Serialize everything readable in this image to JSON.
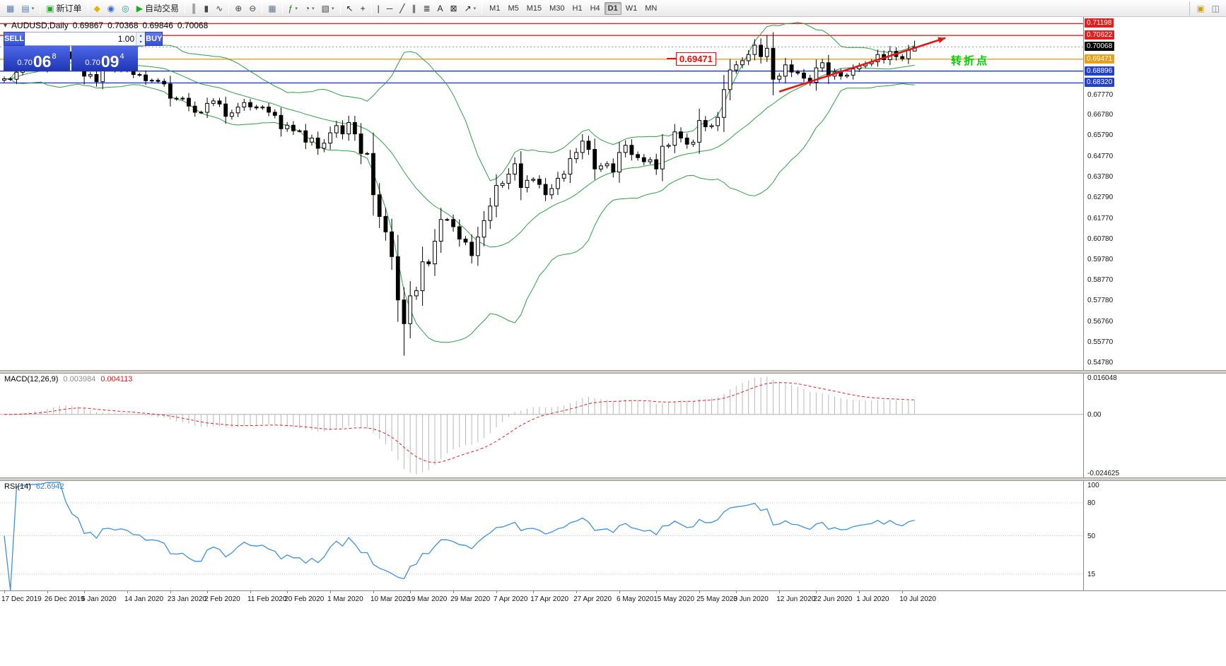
{
  "toolbar": {
    "groups": [
      {
        "items": [
          {
            "name": "new-chart-icon",
            "glyph": "▦",
            "color": "#5a7ab0"
          },
          {
            "name": "chart-profiles-icon",
            "glyph": "▤",
            "color": "#5a7ab0",
            "dd": true
          }
        ]
      },
      {
        "items": [
          {
            "name": "new-order-button",
            "glyph": "▣",
            "color": "#28a428",
            "label": "新订单"
          }
        ]
      },
      {
        "items": [
          {
            "name": "metaeditor-icon",
            "glyph": "◆",
            "color": "#e0b400"
          },
          {
            "name": "market-watch-icon",
            "glyph": "◉",
            "color": "#3a6ad0"
          },
          {
            "name": "navigator-icon",
            "glyph": "◎",
            "color": "#22a098"
          },
          {
            "name": "autotrading-button",
            "glyph": "▶",
            "color": "#14b014",
            "label": "自动交易"
          }
        ]
      },
      {
        "items": [
          {
            "name": "ohlc-bars-icon",
            "glyph": "║",
            "color": "#444444"
          },
          {
            "name": "candlestick-chart-icon",
            "glyph": "▮",
            "color": "#444444"
          },
          {
            "name": "line-chart-icon",
            "glyph": "∿",
            "color": "#444444"
          }
        ]
      },
      {
        "items": [
          {
            "name": "zoom-in-icon",
            "glyph": "⊕",
            "color": "#444444"
          },
          {
            "name": "zoom-out-icon",
            "glyph": "⊖",
            "color": "#444444"
          }
        ]
      },
      {
        "items": [
          {
            "name": "tile-windows-icon",
            "glyph": "▦",
            "color": "#667788"
          }
        ]
      },
      {
        "items": [
          {
            "name": "indicators-icon",
            "glyph": "ƒ",
            "color": "#1a7a1a",
            "dd": true
          },
          {
            "name": "periods-icon",
            "glyph": "◔",
            "color": "#444444",
            "dd": true
          },
          {
            "name": "templates-icon",
            "glyph": "▧",
            "color": "#444444",
            "dd": true
          }
        ]
      },
      {
        "items": [
          {
            "name": "cursor-icon",
            "glyph": "↖",
            "color": "#222222"
          },
          {
            "name": "crosshair-icon",
            "glyph": "+",
            "color": "#222222"
          }
        ]
      },
      {
        "items": [
          {
            "name": "vertical-line-icon",
            "glyph": "|",
            "color": "#222222"
          },
          {
            "name": "horizontal-line-icon",
            "glyph": "─",
            "color": "#222222"
          },
          {
            "name": "trendline-icon",
            "glyph": "╱",
            "color": "#222222"
          },
          {
            "name": "channel-icon",
            "glyph": "∥",
            "color": "#222222"
          },
          {
            "name": "fibonacci-icon",
            "glyph": "≣",
            "color": "#222222"
          },
          {
            "name": "text-icon",
            "glyph": "A",
            "color": "#222222"
          },
          {
            "name": "label-icon",
            "glyph": "⊠",
            "color": "#222222"
          },
          {
            "name": "arrows-icon",
            "glyph": "↗",
            "color": "#222222",
            "dd": true
          }
        ]
      }
    ],
    "timeframes": {
      "labels": [
        "M1",
        "M5",
        "M15",
        "M30",
        "H1",
        "H4",
        "D1",
        "W1",
        "MN"
      ],
      "active": "D1"
    },
    "right_items": [
      {
        "name": "toolbar-window-icon",
        "glyph": "▣",
        "color": "#c8a020"
      },
      {
        "name": "toolbar-help-icon",
        "glyph": "◫",
        "color": "#6a7a8a"
      }
    ]
  },
  "chart_header": {
    "symbol_period": "AUDUSD,Daily",
    "open": "0.69867",
    "high": "0.70368",
    "low": "0.69846",
    "close": "0.70068"
  },
  "one_click": {
    "sell_label": "SELL",
    "buy_label": "BUY",
    "volume": "1.00",
    "sell": {
      "prefix": "0.70",
      "big": "06",
      "sup": "8",
      "full": "0.70068"
    },
    "buy": {
      "prefix": "0.70",
      "big": "09",
      "sup": "4",
      "full": "0.70094"
    }
  },
  "chart_data": [
    {
      "type": "candlestick",
      "symbol": "AUDUSD",
      "timeframe": "Daily",
      "ylim": [
        0.544,
        0.7152
      ],
      "first_open": 0.6845,
      "closes": [
        0.6852,
        0.685,
        0.6884,
        0.69,
        0.6907,
        0.6912,
        0.692,
        0.6983,
        0.6995,
        0.7021,
        0.6983,
        0.695,
        0.6935,
        0.6865,
        0.6873,
        0.6838,
        0.69,
        0.6905,
        0.6895,
        0.6903,
        0.6895,
        0.6873,
        0.6871,
        0.6843,
        0.6845,
        0.684,
        0.6827,
        0.6758,
        0.6755,
        0.6758,
        0.672,
        0.669,
        0.669,
        0.6733,
        0.6745,
        0.673,
        0.667,
        0.6687,
        0.6715,
        0.6737,
        0.6716,
        0.6711,
        0.6715,
        0.669,
        0.6675,
        0.661,
        0.6627,
        0.66,
        0.66,
        0.6545,
        0.6565,
        0.6515,
        0.654,
        0.659,
        0.6625,
        0.6585,
        0.664,
        0.6585,
        0.649,
        0.649,
        0.629,
        0.6185,
        0.611,
        0.599,
        0.578,
        0.5665,
        0.58,
        0.5825,
        0.5965,
        0.5955,
        0.6065,
        0.617,
        0.617,
        0.6135,
        0.6075,
        0.606,
        0.5995,
        0.6085,
        0.6165,
        0.6235,
        0.6335,
        0.6345,
        0.639,
        0.644,
        0.6325,
        0.636,
        0.6365,
        0.634,
        0.629,
        0.632,
        0.637,
        0.639,
        0.6465,
        0.6495,
        0.655,
        0.651,
        0.6415,
        0.643,
        0.644,
        0.64,
        0.6495,
        0.653,
        0.6485,
        0.647,
        0.645,
        0.646,
        0.6415,
        0.6525,
        0.653,
        0.6595,
        0.6565,
        0.6535,
        0.6545,
        0.665,
        0.662,
        0.6625,
        0.6665,
        0.68,
        0.6895,
        0.692,
        0.694,
        0.697,
        0.7015,
        0.696,
        0.7,
        0.685,
        0.6865,
        0.692,
        0.6885,
        0.688,
        0.6855,
        0.6835,
        0.6905,
        0.693,
        0.6865,
        0.6885,
        0.6865,
        0.687,
        0.69,
        0.6915,
        0.6925,
        0.6935,
        0.697,
        0.6945,
        0.6985,
        0.696,
        0.695,
        0.699,
        0.7007
      ],
      "special": {
        "65": {
          "low": 0.551
        },
        "124": {
          "high": 0.7064
        },
        "148": {
          "open": 0.69867,
          "high": 0.70368,
          "low": 0.69846,
          "close": 0.70068
        }
      },
      "bollinger": {
        "period": 20,
        "deviation": 2,
        "color": "#2f9e45"
      },
      "levels": [
        {
          "price": 0.71198,
          "tag": "0.71198",
          "color": "#e02020"
        },
        {
          "price": 0.70622,
          "tag": "0.70622",
          "color": "#e02020"
        },
        {
          "price": 0.69471,
          "tag": "0.69471",
          "color": "#e8a018"
        },
        {
          "price": 0.68896,
          "tag": "0.68896",
          "color": "#2240d0"
        },
        {
          "price": 0.6832,
          "tag": "0.68320",
          "color": "#2240d0"
        }
      ],
      "current": {
        "price": 0.70068,
        "tag": "0.70068",
        "color": "#000000"
      },
      "y_axis_labels": [
        "0.67770",
        "0.66780",
        "0.65790",
        "0.64770",
        "0.63780",
        "0.62790",
        "0.61770",
        "0.60780",
        "0.59780",
        "0.58770",
        "0.57780",
        "0.56760",
        "0.55770",
        "0.54780"
      ],
      "dates": [
        {
          "label": "17 Dec 2019",
          "i": 0
        },
        {
          "label": "26 Dec 2019",
          "i": 7
        },
        {
          "label": "5 Jan 2020",
          "i": 13
        },
        {
          "label": "14 Jan 2020",
          "i": 20
        },
        {
          "label": "23 Jan 2020",
          "i": 27
        },
        {
          "label": "2 Feb 2020",
          "i": 33
        },
        {
          "label": "11 Feb 2020",
          "i": 40
        },
        {
          "label": "20 Feb 2020",
          "i": 46
        },
        {
          "label": "1 Mar 2020",
          "i": 53
        },
        {
          "label": "10 Mar 2020",
          "i": 60
        },
        {
          "label": "19 Mar 2020",
          "i": 66
        },
        {
          "label": "29 Mar 2020",
          "i": 73
        },
        {
          "label": "7 Apr 2020",
          "i": 80
        },
        {
          "label": "17 Apr 2020",
          "i": 86
        },
        {
          "label": "27 Apr 2020",
          "i": 93
        },
        {
          "label": "6 May 2020",
          "i": 100
        },
        {
          "label": "15 May 2020",
          "i": 106
        },
        {
          "label": "25 May 2020",
          "i": 113
        },
        {
          "label": "3 Jun 2020",
          "i": 119
        },
        {
          "label": "12 Jun 2020",
          "i": 126
        },
        {
          "label": "22 Jun 2020",
          "i": 132
        },
        {
          "label": "1 Jul 2020",
          "i": 139
        },
        {
          "label": "10 Jul 2020",
          "i": 146
        }
      ]
    },
    {
      "type": "macd",
      "label": "MACD(12,26,9)",
      "value_main": "0.003984",
      "value_signal": "0.004113",
      "fast": 12,
      "slow": 26,
      "signal": 9,
      "axis_top": "0.016048",
      "axis_zero": "0.00",
      "axis_bottom": "-0.024625",
      "histogram_color": "#b8b8b8",
      "signal_color": "#e02020"
    },
    {
      "type": "rsi",
      "label": "RSI(14)",
      "value": "62.6942",
      "period": 14,
      "levels": [
        80,
        50,
        15
      ],
      "axis_labels": [
        "100",
        "80",
        "50",
        "15"
      ],
      "color": "#3f8fdf"
    }
  ],
  "annotations": {
    "price_label": {
      "text": "0.69471",
      "price": 0.69471,
      "x_index": 107,
      "color": "#e01010"
    },
    "trend_arrow": {
      "from_index": 126,
      "from_price": 0.679,
      "to_index": 153,
      "to_price": 0.705,
      "color": "#e81414"
    },
    "turning_point": {
      "text": "转折点",
      "price": 0.6947,
      "x": 1345,
      "color": "#00cc00"
    }
  }
}
